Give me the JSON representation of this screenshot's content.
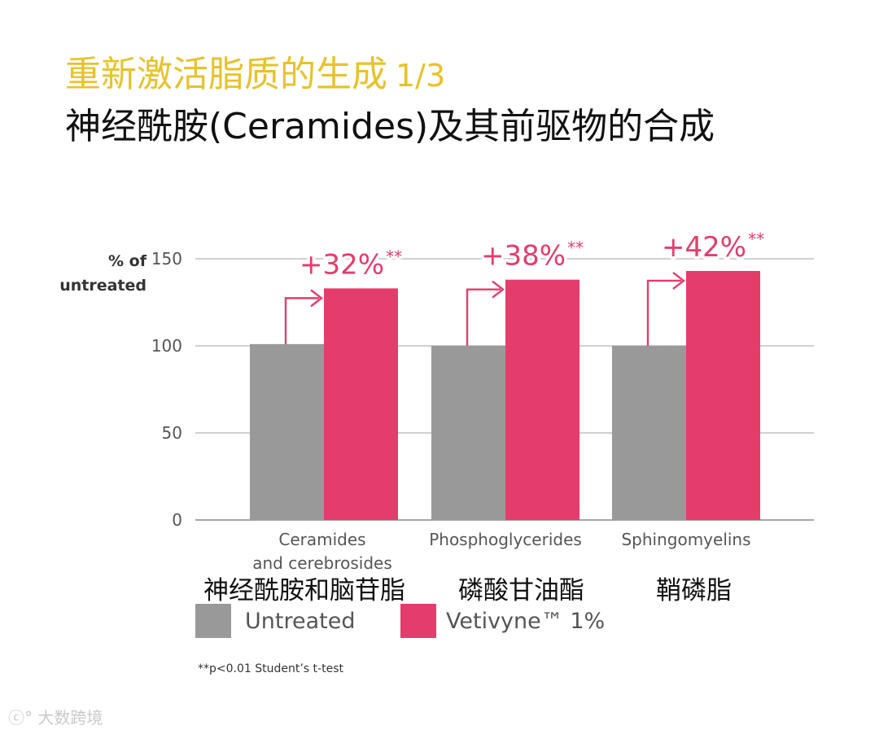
{
  "header": {
    "title_main": "重新激活脂质的生成",
    "title_fraction": "1/3",
    "subtitle": "神经酰胺(Ceramides)及其前驱物的合成"
  },
  "chart_data": {
    "type": "bar",
    "ylabel_line1": "% of",
    "ylabel_line2": "untreated",
    "ylim": [
      0,
      150
    ],
    "yticks": [
      0,
      50,
      100,
      150
    ],
    "grid": true,
    "categories": [
      [
        "Ceramides",
        "and cerebrosides"
      ],
      [
        "Phosphoglycerides"
      ],
      [
        "Sphingomyelins"
      ]
    ],
    "categories_cn": [
      "神经酰胺和脑苷脂",
      "磷酸甘油酯",
      "鞘磷脂"
    ],
    "series": [
      {
        "name": "Untreated",
        "color": "#999999",
        "values": [
          101,
          100,
          100
        ]
      },
      {
        "name": "Vetivyne™ 1%",
        "color": "#e43d6b",
        "values": [
          133,
          138,
          143
        ]
      }
    ],
    "annotations": [
      {
        "label": "+32%",
        "sig": "**"
      },
      {
        "label": "+38%",
        "sig": "**"
      },
      {
        "label": "+42%",
        "sig": "**"
      }
    ],
    "annotation_color": "#e43d6b"
  },
  "footnote": "**p<0.01 Student’s t-test",
  "watermark": "大数跨境"
}
